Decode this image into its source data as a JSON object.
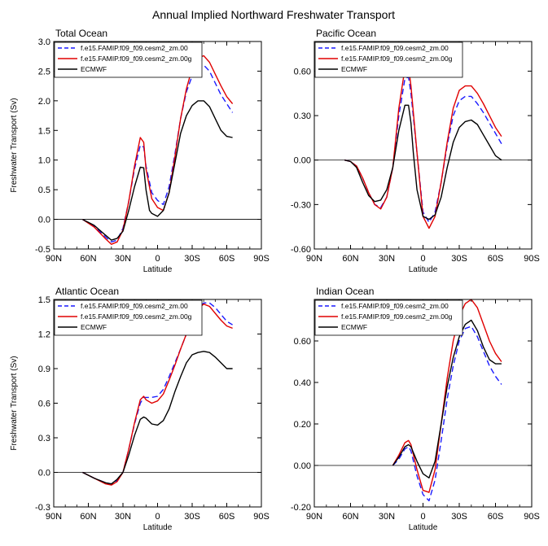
{
  "figure_title": "Annual Implied Northward Freshwater Transport",
  "legend_labels": [
    "f.e15.FAMIP.f09_f09.cesm2_zm.00",
    "f.e15.FAMIP.f09_f09.cesm2_zm.00g",
    "ECMWF"
  ],
  "series_colors": [
    "#1a1aff",
    "#e00000",
    "#000000"
  ],
  "chart_data": [
    {
      "type": "line",
      "title": "Total Ocean",
      "xlabel": "Latitude",
      "ylabel": "Freshwater Transport (Sv)",
      "xlim": [
        90,
        -90
      ],
      "ylim": [
        -0.5,
        3.0
      ],
      "xticks": [
        90,
        60,
        30,
        0,
        -30,
        -60,
        -90
      ],
      "xticklabels": [
        "90N",
        "60N",
        "30N",
        "0",
        "30S",
        "60S",
        "90S"
      ],
      "yticks": [
        -0.5,
        0,
        0.5,
        1,
        1.5,
        2,
        2.5,
        3
      ],
      "yticklabels": [
        "-0.5",
        "0.0",
        "0.5",
        "1.0",
        "1.5",
        "2.0",
        "2.5",
        "3.0"
      ],
      "series": [
        {
          "name": "f.e15.FAMIP.f09_f09.cesm2_zm.00",
          "x": [
            65,
            55,
            45,
            40,
            35,
            30,
            25,
            20,
            15,
            12,
            10,
            5,
            0,
            -5,
            -10,
            -15,
            -20,
            -25,
            -30,
            -35,
            -40,
            -45,
            -50,
            -55,
            -60,
            -65
          ],
          "y": [
            0,
            -0.12,
            -0.3,
            -0.38,
            -0.35,
            -0.15,
            0.3,
            0.85,
            1.25,
            1.22,
            0.9,
            0.45,
            0.32,
            0.25,
            0.55,
            1.1,
            1.7,
            2.15,
            2.42,
            2.57,
            2.6,
            2.5,
            2.3,
            2.1,
            1.95,
            1.8
          ]
        },
        {
          "name": "f.e15.FAMIP.f09_f09.cesm2_zm.00g",
          "x": [
            65,
            55,
            45,
            40,
            35,
            30,
            25,
            20,
            15,
            12,
            10,
            5,
            0,
            -5,
            -10,
            -15,
            -20,
            -25,
            -30,
            -35,
            -40,
            -45,
            -50,
            -55,
            -60,
            -65
          ],
          "y": [
            0,
            -0.13,
            -0.33,
            -0.42,
            -0.38,
            -0.18,
            0.3,
            0.9,
            1.38,
            1.3,
            0.85,
            0.35,
            0.2,
            0.15,
            0.45,
            1.05,
            1.7,
            2.2,
            2.55,
            2.72,
            2.76,
            2.65,
            2.45,
            2.25,
            2.07,
            1.95
          ]
        },
        {
          "name": "ECMWF",
          "x": [
            65,
            55,
            45,
            40,
            35,
            30,
            25,
            20,
            15,
            12,
            10,
            7,
            5,
            0,
            -5,
            -10,
            -15,
            -20,
            -25,
            -30,
            -35,
            -40,
            -45,
            -50,
            -55,
            -60,
            -65
          ],
          "y": [
            0,
            -0.1,
            -0.27,
            -0.35,
            -0.32,
            -0.2,
            0.15,
            0.55,
            0.88,
            0.87,
            0.5,
            0.15,
            0.1,
            0.05,
            0.15,
            0.45,
            0.95,
            1.45,
            1.75,
            1.92,
            2.0,
            2.0,
            1.9,
            1.7,
            1.5,
            1.4,
            1.38
          ]
        }
      ]
    },
    {
      "type": "line",
      "title": "Pacific Ocean",
      "xlabel": "Latitude",
      "ylabel": "",
      "xlim": [
        90,
        -90
      ],
      "ylim": [
        -0.6,
        0.8
      ],
      "xticks": [
        90,
        60,
        30,
        0,
        -30,
        -60,
        -90
      ],
      "xticklabels": [
        "90N",
        "60N",
        "30N",
        "0",
        "30S",
        "60S",
        "90S"
      ],
      "yticks": [
        -0.6,
        -0.3,
        0,
        0.3,
        0.6
      ],
      "yticklabels": [
        "-0.60",
        "-0.30",
        "0.00",
        "0.30",
        "0.60"
      ],
      "series": [
        {
          "name": "f.e15.FAMIP.f09_f09.cesm2_zm.00",
          "x": [
            65,
            60,
            55,
            50,
            45,
            40,
            35,
            30,
            25,
            20,
            15,
            12,
            10,
            5,
            0,
            -5,
            -10,
            -15,
            -20,
            -25,
            -30,
            -35,
            -40,
            -45,
            -50,
            -55,
            -60,
            -65
          ],
          "y": [
            0,
            -0.01,
            -0.04,
            -0.12,
            -0.22,
            -0.3,
            -0.32,
            -0.25,
            -0.05,
            0.3,
            0.55,
            0.56,
            0.45,
            0.05,
            -0.35,
            -0.42,
            -0.35,
            -0.15,
            0.1,
            0.3,
            0.4,
            0.43,
            0.43,
            0.38,
            0.32,
            0.25,
            0.18,
            0.11
          ]
        },
        {
          "name": "f.e15.FAMIP.f09_f09.cesm2_zm.00g",
          "x": [
            65,
            60,
            55,
            50,
            45,
            40,
            35,
            30,
            25,
            20,
            15,
            12,
            10,
            5,
            0,
            -5,
            -10,
            -15,
            -20,
            -25,
            -30,
            -35,
            -40,
            -45,
            -50,
            -55,
            -60,
            -65
          ],
          "y": [
            0,
            -0.01,
            -0.04,
            -0.12,
            -0.22,
            -0.3,
            -0.33,
            -0.25,
            -0.05,
            0.35,
            0.62,
            0.63,
            0.5,
            0.05,
            -0.38,
            -0.46,
            -0.38,
            -0.15,
            0.12,
            0.35,
            0.47,
            0.5,
            0.5,
            0.45,
            0.38,
            0.3,
            0.22,
            0.16
          ]
        },
        {
          "name": "ECMWF",
          "x": [
            65,
            60,
            55,
            50,
            45,
            40,
            35,
            30,
            25,
            20,
            15,
            12,
            10,
            8,
            5,
            0,
            -5,
            -10,
            -15,
            -20,
            -25,
            -30,
            -35,
            -40,
            -45,
            -50,
            -55,
            -60,
            -65
          ],
          "y": [
            0,
            -0.01,
            -0.05,
            -0.15,
            -0.24,
            -0.28,
            -0.27,
            -0.2,
            -0.05,
            0.2,
            0.37,
            0.37,
            0.25,
            0.05,
            -0.2,
            -0.38,
            -0.4,
            -0.37,
            -0.25,
            -0.05,
            0.12,
            0.22,
            0.26,
            0.27,
            0.24,
            0.17,
            0.1,
            0.03,
            0
          ]
        }
      ]
    },
    {
      "type": "line",
      "title": "Atlantic Ocean",
      "xlabel": "Latitude",
      "ylabel": "Freshwater Transport (Sv)",
      "xlim": [
        90,
        -90
      ],
      "ylim": [
        -0.3,
        1.5
      ],
      "xticks": [
        90,
        60,
        30,
        0,
        -30,
        -60,
        -90
      ],
      "xticklabels": [
        "90N",
        "60N",
        "30N",
        "0",
        "30S",
        "60S",
        "90S"
      ],
      "yticks": [
        -0.3,
        0,
        0.3,
        0.6,
        0.9,
        1.2,
        1.5
      ],
      "yticklabels": [
        "-0.3",
        "0.0",
        "0.3",
        "0.6",
        "0.9",
        "1.2",
        "1.5"
      ],
      "series": [
        {
          "name": "f.e15.FAMIP.f09_f09.cesm2_zm.00",
          "x": [
            65,
            55,
            45,
            40,
            35,
            30,
            25,
            20,
            15,
            12,
            10,
            5,
            0,
            -5,
            -10,
            -15,
            -20,
            -25,
            -30,
            -35,
            -40,
            -45,
            -50,
            -55,
            -60,
            -65
          ],
          "y": [
            0,
            -0.05,
            -0.09,
            -0.1,
            -0.07,
            0,
            0.2,
            0.42,
            0.6,
            0.65,
            0.65,
            0.65,
            0.66,
            0.72,
            0.83,
            0.95,
            1.07,
            1.2,
            1.32,
            1.42,
            1.47,
            1.47,
            1.43,
            1.37,
            1.31,
            1.28
          ]
        },
        {
          "name": "f.e15.FAMIP.f09_f09.cesm2_zm.00g",
          "x": [
            65,
            55,
            45,
            40,
            35,
            30,
            25,
            20,
            15,
            12,
            10,
            5,
            0,
            -5,
            -10,
            -15,
            -20,
            -25,
            -30,
            -35,
            -40,
            -45,
            -50,
            -55,
            -60,
            -65
          ],
          "y": [
            0,
            -0.05,
            -0.1,
            -0.11,
            -0.08,
            0,
            0.2,
            0.43,
            0.63,
            0.66,
            0.63,
            0.6,
            0.62,
            0.68,
            0.8,
            0.93,
            1.07,
            1.2,
            1.32,
            1.42,
            1.46,
            1.44,
            1.38,
            1.32,
            1.27,
            1.25
          ]
        },
        {
          "name": "ECMWF",
          "x": [
            65,
            55,
            45,
            40,
            35,
            30,
            25,
            20,
            15,
            12,
            10,
            5,
            0,
            -5,
            -10,
            -15,
            -20,
            -25,
            -30,
            -35,
            -40,
            -45,
            -50,
            -55,
            -60,
            -65
          ],
          "y": [
            0,
            -0.05,
            -0.09,
            -0.1,
            -0.06,
            0,
            0.15,
            0.32,
            0.46,
            0.48,
            0.47,
            0.42,
            0.41,
            0.45,
            0.55,
            0.7,
            0.83,
            0.95,
            1.02,
            1.04,
            1.05,
            1.04,
            1.0,
            0.95,
            0.9,
            0.9
          ]
        }
      ]
    },
    {
      "type": "line",
      "title": "Indian Ocean",
      "xlabel": "Latitude",
      "ylabel": "",
      "xlim": [
        90,
        -90
      ],
      "ylim": [
        -0.2,
        0.8
      ],
      "xticks": [
        90,
        60,
        30,
        0,
        -30,
        -60,
        -90
      ],
      "xticklabels": [
        "90N",
        "60N",
        "30N",
        "0",
        "30S",
        "60S",
        "90S"
      ],
      "yticks": [
        -0.2,
        0,
        0.2,
        0.4,
        0.6
      ],
      "yticklabels": [
        "-0.20",
        "0.00",
        "0.20",
        "0.40",
        "0.60"
      ],
      "series": [
        {
          "name": "f.e15.FAMIP.f09_f09.cesm2_zm.00",
          "x": [
            25,
            20,
            15,
            12,
            10,
            5,
            0,
            -5,
            -10,
            -15,
            -20,
            -25,
            -30,
            -35,
            -40,
            -45,
            -50,
            -55,
            -60,
            -65
          ],
          "y": [
            0,
            0.03,
            0.08,
            0.09,
            0.07,
            -0.05,
            -0.14,
            -0.17,
            -0.07,
            0.12,
            0.32,
            0.48,
            0.6,
            0.66,
            0.67,
            0.62,
            0.55,
            0.48,
            0.43,
            0.39
          ]
        },
        {
          "name": "f.e15.FAMIP.f09_f09.cesm2_zm.00g",
          "x": [
            25,
            20,
            15,
            12,
            10,
            5,
            0,
            -5,
            -10,
            -15,
            -20,
            -25,
            -30,
            -35,
            -40,
            -45,
            -50,
            -55,
            -60,
            -65
          ],
          "y": [
            0,
            0.05,
            0.11,
            0.12,
            0.1,
            -0.02,
            -0.12,
            -0.13,
            -0.02,
            0.2,
            0.42,
            0.6,
            0.72,
            0.78,
            0.8,
            0.76,
            0.68,
            0.6,
            0.54,
            0.5
          ]
        },
        {
          "name": "ECMWF",
          "x": [
            25,
            20,
            15,
            12,
            10,
            5,
            0,
            -5,
            -10,
            -15,
            -20,
            -25,
            -30,
            -35,
            -40,
            -45,
            -50,
            -55,
            -60,
            -65
          ],
          "y": [
            0,
            0.04,
            0.09,
            0.1,
            0.09,
            0.02,
            -0.04,
            -0.06,
            0.02,
            0.2,
            0.38,
            0.52,
            0.62,
            0.68,
            0.7,
            0.65,
            0.57,
            0.51,
            0.49,
            0.49
          ]
        }
      ]
    }
  ]
}
